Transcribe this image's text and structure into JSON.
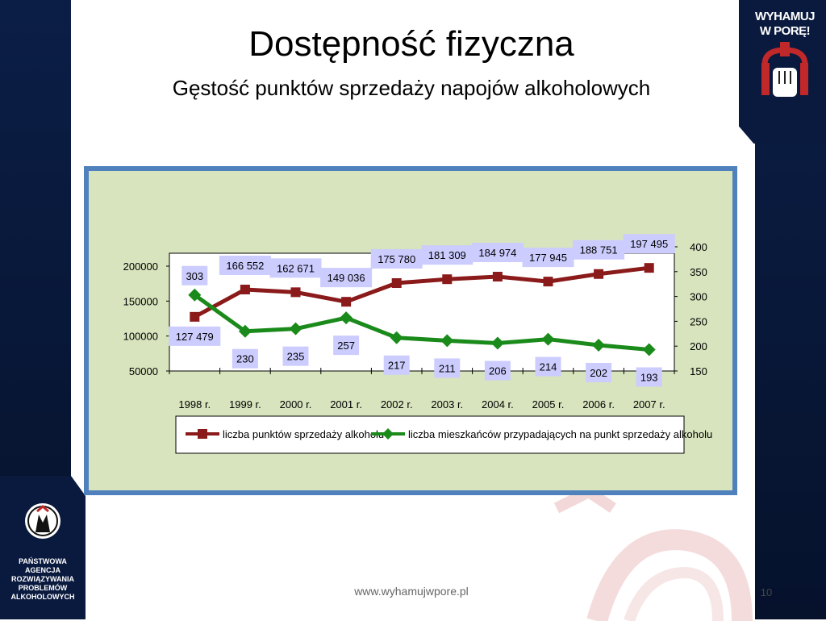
{
  "slide": {
    "title": "Dostępność fizyczna",
    "subtitle": "Gęstość punktów sprzedaży napojów alkoholowych",
    "footer_url": "www.wyhamujwpore.pl",
    "page_number": "10",
    "logo_right": {
      "line1": "WYHAMUJ",
      "line2": "W PORĘ!",
      "icon": "fist-on-brake-icon"
    },
    "logo_left": {
      "org_lines": [
        "PAŃSTWOWA",
        "AGENCJA",
        "ROZWIĄZYWANIA",
        "PROBLEMÓW",
        "ALKOHOLOWYCH"
      ],
      "icon": "parpa-emblem-icon"
    },
    "colors": {
      "side_bars": "#0a1a3e",
      "panel_bg": "#d7e4bd",
      "panel_border": "#4f81bd",
      "label_box": "#ccccff"
    }
  },
  "chart_data": {
    "type": "line",
    "categories": [
      "1998 r.",
      "1999 r.",
      "2000 r.",
      "2001 r.",
      "2002 r.",
      "2003 r.",
      "2004 r.",
      "2005 r.",
      "2006 r.",
      "2007 r."
    ],
    "series": [
      {
        "name": "liczba punktów sprzedaży alkoholu",
        "axis": "left",
        "color": "#8b1a1a",
        "marker": "square",
        "values": [
          127479,
          166552,
          162671,
          149036,
          175780,
          181309,
          184974,
          177945,
          188751,
          197495
        ],
        "labels": [
          "127 479",
          "166 552",
          "162 671",
          "149 036",
          "175 780",
          "181 309",
          "184 974",
          "177 945",
          "188 751",
          "197 495"
        ]
      },
      {
        "name": "liczba mieszkańców przypadających na punkt sprzedaży alkoholu",
        "axis": "right",
        "color": "#1a8a1a",
        "marker": "diamond",
        "values": [
          303,
          230,
          235,
          257,
          217,
          211,
          206,
          214,
          202,
          193
        ],
        "labels": [
          "303",
          "230",
          "235",
          "257",
          "217",
          "211",
          "206",
          "214",
          "202",
          "193"
        ]
      }
    ],
    "y_left": {
      "ticks": [
        "50000",
        "100000",
        "150000",
        "200000"
      ],
      "range": [
        50000,
        200000
      ]
    },
    "y_right": {
      "ticks": [
        "150",
        "200",
        "250",
        "300",
        "350",
        "400"
      ],
      "range": [
        150,
        400
      ]
    },
    "legend": "bottom",
    "grid": false
  }
}
